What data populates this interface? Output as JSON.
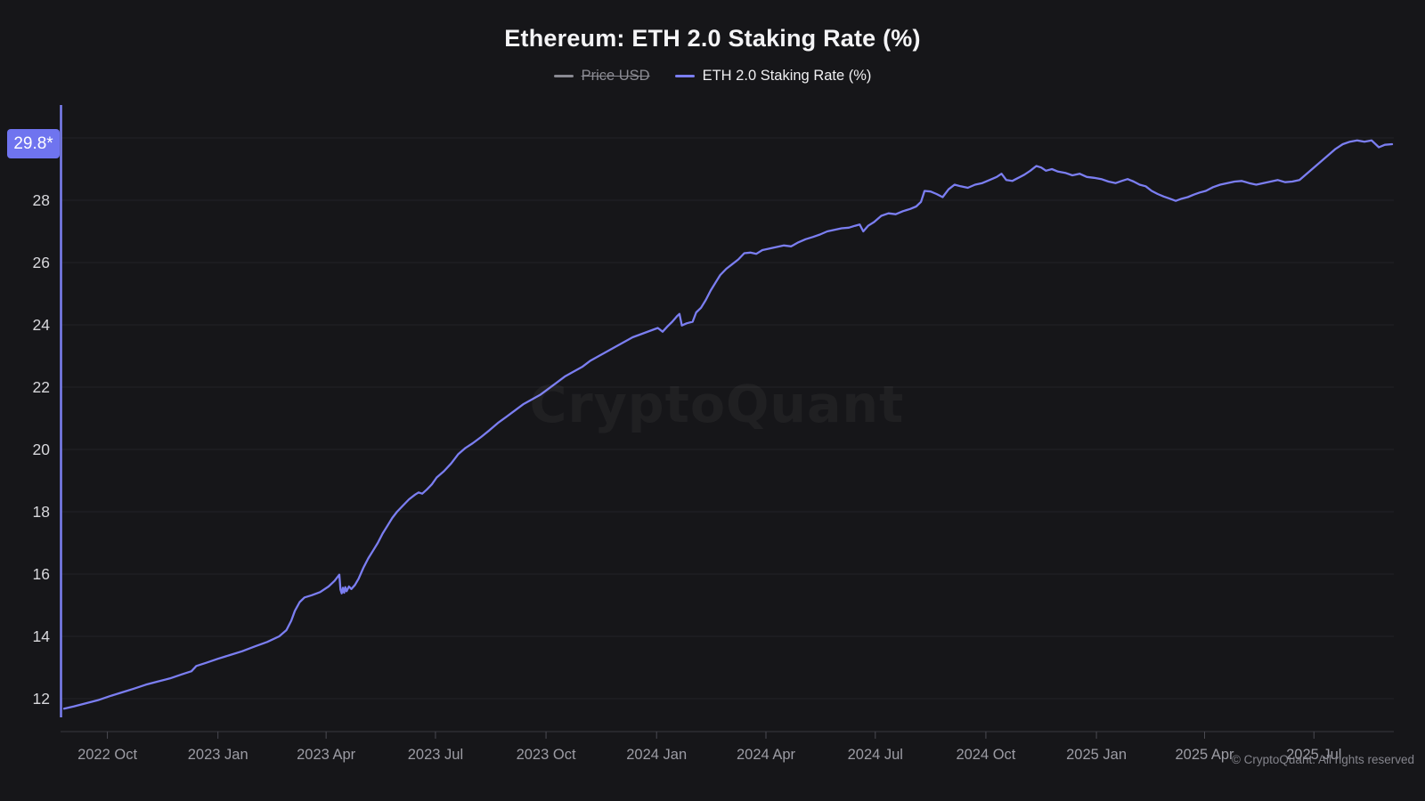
{
  "header": {
    "title": "Ethereum: ETH 2.0 Staking Rate (%)"
  },
  "legend": {
    "items": [
      {
        "label": "Price USD",
        "color": "#8a8a92",
        "disabled": true
      },
      {
        "label": "ETH 2.0 Staking Rate (%)",
        "color": "#7b7ef1",
        "disabled": false
      }
    ]
  },
  "badge": {
    "text": "29.8*",
    "value": 29.8
  },
  "watermark": {
    "text": "CryptoQuant"
  },
  "footer": {
    "text": "© CryptoQuant. All rights reserved"
  },
  "colors": {
    "background": "#161619",
    "accent": "#7b7ef1",
    "badge_bg": "#6f74ef",
    "grid": "#232327",
    "axis_spine": "#7c80f2",
    "baseline": "#38383e",
    "tick": "#4a4a52",
    "x_label": "#9c9ca4",
    "y_label": "#d8d8dc",
    "disabled": "#8a8a92"
  },
  "chart_data": {
    "type": "line",
    "title": "Ethereum: ETH 2.0 Staking Rate (%)",
    "ylabel": "ETH 2.0 Staking Rate (%)",
    "xlabel": "",
    "ylim": [
      11.4,
      31.0
    ],
    "grid": true,
    "legend_position": "top",
    "y_ticks": [
      12,
      14,
      16,
      18,
      20,
      22,
      24,
      26,
      28
    ],
    "grid_values": [
      12,
      14,
      16,
      18,
      20,
      22,
      24,
      26,
      28,
      30
    ],
    "x_domain": [
      "2022-08-26",
      "2025-09-04"
    ],
    "x_ticks": [
      {
        "date": "2022-10-01",
        "label": "2022 Oct"
      },
      {
        "date": "2023-01-01",
        "label": "2023 Jan"
      },
      {
        "date": "2023-04-01",
        "label": "2023 Apr"
      },
      {
        "date": "2023-07-01",
        "label": "2023 Jul"
      },
      {
        "date": "2023-10-01",
        "label": "2023 Oct"
      },
      {
        "date": "2024-01-01",
        "label": "2024 Jan"
      },
      {
        "date": "2024-04-01",
        "label": "2024 Apr"
      },
      {
        "date": "2024-07-01",
        "label": "2024 Jul"
      },
      {
        "date": "2024-10-01",
        "label": "2024 Oct"
      },
      {
        "date": "2025-01-01",
        "label": "2025 Jan"
      },
      {
        "date": "2025-04-01",
        "label": "2025 Apr"
      },
      {
        "date": "2025-07-01",
        "label": "2025 Jul"
      }
    ],
    "last_value": 29.8,
    "series": [
      {
        "name": "Price USD",
        "color": "#8a8a92",
        "disabled": true,
        "points": []
      },
      {
        "name": "ETH 2.0 Staking Rate (%)",
        "color": "#7b7ef1",
        "disabled": false,
        "points": [
          [
            "2022-08-26",
            11.68
          ],
          [
            "2022-09-03",
            11.75
          ],
          [
            "2022-09-13",
            11.85
          ],
          [
            "2022-09-23",
            11.95
          ],
          [
            "2022-10-03",
            12.08
          ],
          [
            "2022-10-13",
            12.2
          ],
          [
            "2022-10-23",
            12.32
          ],
          [
            "2022-11-02",
            12.45
          ],
          [
            "2022-11-12",
            12.55
          ],
          [
            "2022-11-22",
            12.65
          ],
          [
            "2022-12-02",
            12.78
          ],
          [
            "2022-12-10",
            12.88
          ],
          [
            "2022-12-14",
            13.05
          ],
          [
            "2022-12-22",
            13.15
          ],
          [
            "2023-01-01",
            13.28
          ],
          [
            "2023-01-11",
            13.4
          ],
          [
            "2023-01-21",
            13.52
          ],
          [
            "2023-02-01",
            13.68
          ],
          [
            "2023-02-11",
            13.82
          ],
          [
            "2023-02-21",
            14.0
          ],
          [
            "2023-02-27",
            14.2
          ],
          [
            "2023-03-03",
            14.5
          ],
          [
            "2023-03-06",
            14.82
          ],
          [
            "2023-03-10",
            15.1
          ],
          [
            "2023-03-14",
            15.25
          ],
          [
            "2023-03-20",
            15.32
          ],
          [
            "2023-03-27",
            15.42
          ],
          [
            "2023-04-03",
            15.6
          ],
          [
            "2023-04-08",
            15.78
          ],
          [
            "2023-04-12",
            15.98
          ],
          [
            "2023-04-13",
            15.5
          ],
          [
            "2023-04-14",
            15.38
          ],
          [
            "2023-04-15",
            15.56
          ],
          [
            "2023-04-16",
            15.4
          ],
          [
            "2023-04-17",
            15.58
          ],
          [
            "2023-04-18",
            15.45
          ],
          [
            "2023-04-20",
            15.6
          ],
          [
            "2023-04-22",
            15.52
          ],
          [
            "2023-04-25",
            15.65
          ],
          [
            "2023-04-28",
            15.85
          ],
          [
            "2023-05-02",
            16.2
          ],
          [
            "2023-05-06",
            16.5
          ],
          [
            "2023-05-10",
            16.75
          ],
          [
            "2023-05-14",
            17.0
          ],
          [
            "2023-05-18",
            17.3
          ],
          [
            "2023-05-22",
            17.55
          ],
          [
            "2023-05-26",
            17.8
          ],
          [
            "2023-05-30",
            18.0
          ],
          [
            "2023-06-04",
            18.2
          ],
          [
            "2023-06-09",
            18.4
          ],
          [
            "2023-06-14",
            18.55
          ],
          [
            "2023-06-17",
            18.62
          ],
          [
            "2023-06-20",
            18.58
          ],
          [
            "2023-06-24",
            18.72
          ],
          [
            "2023-06-28",
            18.88
          ],
          [
            "2023-07-02",
            19.1
          ],
          [
            "2023-07-08",
            19.3
          ],
          [
            "2023-07-14",
            19.55
          ],
          [
            "2023-07-20",
            19.85
          ],
          [
            "2023-07-26",
            20.05
          ],
          [
            "2023-08-01",
            20.2
          ],
          [
            "2023-08-08",
            20.4
          ],
          [
            "2023-08-15",
            20.62
          ],
          [
            "2023-08-22",
            20.85
          ],
          [
            "2023-08-29",
            21.05
          ],
          [
            "2023-09-05",
            21.25
          ],
          [
            "2023-09-12",
            21.45
          ],
          [
            "2023-09-19",
            21.6
          ],
          [
            "2023-09-26",
            21.75
          ],
          [
            "2023-10-03",
            21.95
          ],
          [
            "2023-10-10",
            22.15
          ],
          [
            "2023-10-17",
            22.35
          ],
          [
            "2023-10-24",
            22.5
          ],
          [
            "2023-10-31",
            22.65
          ],
          [
            "2023-11-07",
            22.85
          ],
          [
            "2023-11-14",
            23.0
          ],
          [
            "2023-11-21",
            23.15
          ],
          [
            "2023-11-28",
            23.3
          ],
          [
            "2023-12-05",
            23.45
          ],
          [
            "2023-12-12",
            23.6
          ],
          [
            "2023-12-19",
            23.7
          ],
          [
            "2023-12-26",
            23.8
          ],
          [
            "2024-01-02",
            23.9
          ],
          [
            "2024-01-06",
            23.78
          ],
          [
            "2024-01-10",
            23.95
          ],
          [
            "2024-01-14",
            24.1
          ],
          [
            "2024-01-18",
            24.28
          ],
          [
            "2024-01-20",
            24.35
          ],
          [
            "2024-01-22",
            23.98
          ],
          [
            "2024-01-26",
            24.05
          ],
          [
            "2024-01-31",
            24.1
          ],
          [
            "2024-02-03",
            24.4
          ],
          [
            "2024-02-07",
            24.55
          ],
          [
            "2024-02-11",
            24.8
          ],
          [
            "2024-02-15",
            25.1
          ],
          [
            "2024-02-19",
            25.35
          ],
          [
            "2024-02-23",
            25.6
          ],
          [
            "2024-02-28",
            25.8
          ],
          [
            "2024-03-04",
            25.95
          ],
          [
            "2024-03-09",
            26.1
          ],
          [
            "2024-03-14",
            26.3
          ],
          [
            "2024-03-19",
            26.32
          ],
          [
            "2024-03-24",
            26.28
          ],
          [
            "2024-03-29",
            26.4
          ],
          [
            "2024-04-04",
            26.45
          ],
          [
            "2024-04-10",
            26.5
          ],
          [
            "2024-04-16",
            26.55
          ],
          [
            "2024-04-22",
            26.52
          ],
          [
            "2024-04-28",
            26.65
          ],
          [
            "2024-05-04",
            26.75
          ],
          [
            "2024-05-10",
            26.82
          ],
          [
            "2024-05-16",
            26.9
          ],
          [
            "2024-05-22",
            27.0
          ],
          [
            "2024-05-28",
            27.05
          ],
          [
            "2024-06-03",
            27.1
          ],
          [
            "2024-06-09",
            27.12
          ],
          [
            "2024-06-14",
            27.18
          ],
          [
            "2024-06-18",
            27.22
          ],
          [
            "2024-06-21",
            27.0
          ],
          [
            "2024-06-25",
            27.18
          ],
          [
            "2024-06-30",
            27.3
          ],
          [
            "2024-07-06",
            27.5
          ],
          [
            "2024-07-12",
            27.58
          ],
          [
            "2024-07-18",
            27.55
          ],
          [
            "2024-07-24",
            27.65
          ],
          [
            "2024-07-30",
            27.72
          ],
          [
            "2024-08-04",
            27.8
          ],
          [
            "2024-08-08",
            27.95
          ],
          [
            "2024-08-11",
            28.3
          ],
          [
            "2024-08-16",
            28.28
          ],
          [
            "2024-08-21",
            28.2
          ],
          [
            "2024-08-26",
            28.1
          ],
          [
            "2024-08-31",
            28.35
          ],
          [
            "2024-09-05",
            28.5
          ],
          [
            "2024-09-10",
            28.45
          ],
          [
            "2024-09-16",
            28.4
          ],
          [
            "2024-09-22",
            28.5
          ],
          [
            "2024-09-28",
            28.55
          ],
          [
            "2024-10-04",
            28.65
          ],
          [
            "2024-10-10",
            28.75
          ],
          [
            "2024-10-14",
            28.85
          ],
          [
            "2024-10-18",
            28.65
          ],
          [
            "2024-10-23",
            28.62
          ],
          [
            "2024-10-28",
            28.72
          ],
          [
            "2024-11-02",
            28.82
          ],
          [
            "2024-11-07",
            28.95
          ],
          [
            "2024-11-12",
            29.1
          ],
          [
            "2024-11-16",
            29.05
          ],
          [
            "2024-11-20",
            28.95
          ],
          [
            "2024-11-25",
            29.0
          ],
          [
            "2024-11-30",
            28.92
          ],
          [
            "2024-12-06",
            28.88
          ],
          [
            "2024-12-12",
            28.8
          ],
          [
            "2024-12-18",
            28.85
          ],
          [
            "2024-12-24",
            28.75
          ],
          [
            "2024-12-30",
            28.72
          ],
          [
            "2025-01-05",
            28.68
          ],
          [
            "2025-01-11",
            28.6
          ],
          [
            "2025-01-17",
            28.55
          ],
          [
            "2025-01-22",
            28.62
          ],
          [
            "2025-01-27",
            28.68
          ],
          [
            "2025-02-01",
            28.6
          ],
          [
            "2025-02-06",
            28.5
          ],
          [
            "2025-02-11",
            28.45
          ],
          [
            "2025-02-16",
            28.3
          ],
          [
            "2025-02-21",
            28.2
          ],
          [
            "2025-02-26",
            28.12
          ],
          [
            "2025-03-03",
            28.05
          ],
          [
            "2025-03-08",
            27.98
          ],
          [
            "2025-03-13",
            28.05
          ],
          [
            "2025-03-18",
            28.1
          ],
          [
            "2025-03-23",
            28.18
          ],
          [
            "2025-03-28",
            28.25
          ],
          [
            "2025-04-02",
            28.3
          ],
          [
            "2025-04-08",
            28.42
          ],
          [
            "2025-04-14",
            28.5
          ],
          [
            "2025-04-20",
            28.55
          ],
          [
            "2025-04-26",
            28.6
          ],
          [
            "2025-05-02",
            28.62
          ],
          [
            "2025-05-08",
            28.55
          ],
          [
            "2025-05-14",
            28.5
          ],
          [
            "2025-05-20",
            28.55
          ],
          [
            "2025-05-26",
            28.6
          ],
          [
            "2025-06-01",
            28.65
          ],
          [
            "2025-06-07",
            28.58
          ],
          [
            "2025-06-13",
            28.6
          ],
          [
            "2025-06-19",
            28.65
          ],
          [
            "2025-06-25",
            28.85
          ],
          [
            "2025-07-01",
            29.05
          ],
          [
            "2025-07-07",
            29.25
          ],
          [
            "2025-07-13",
            29.45
          ],
          [
            "2025-07-19",
            29.65
          ],
          [
            "2025-07-25",
            29.8
          ],
          [
            "2025-07-31",
            29.88
          ],
          [
            "2025-08-06",
            29.92
          ],
          [
            "2025-08-12",
            29.88
          ],
          [
            "2025-08-18",
            29.92
          ],
          [
            "2025-08-24",
            29.7
          ],
          [
            "2025-08-29",
            29.78
          ],
          [
            "2025-09-04",
            29.8
          ]
        ]
      }
    ]
  }
}
